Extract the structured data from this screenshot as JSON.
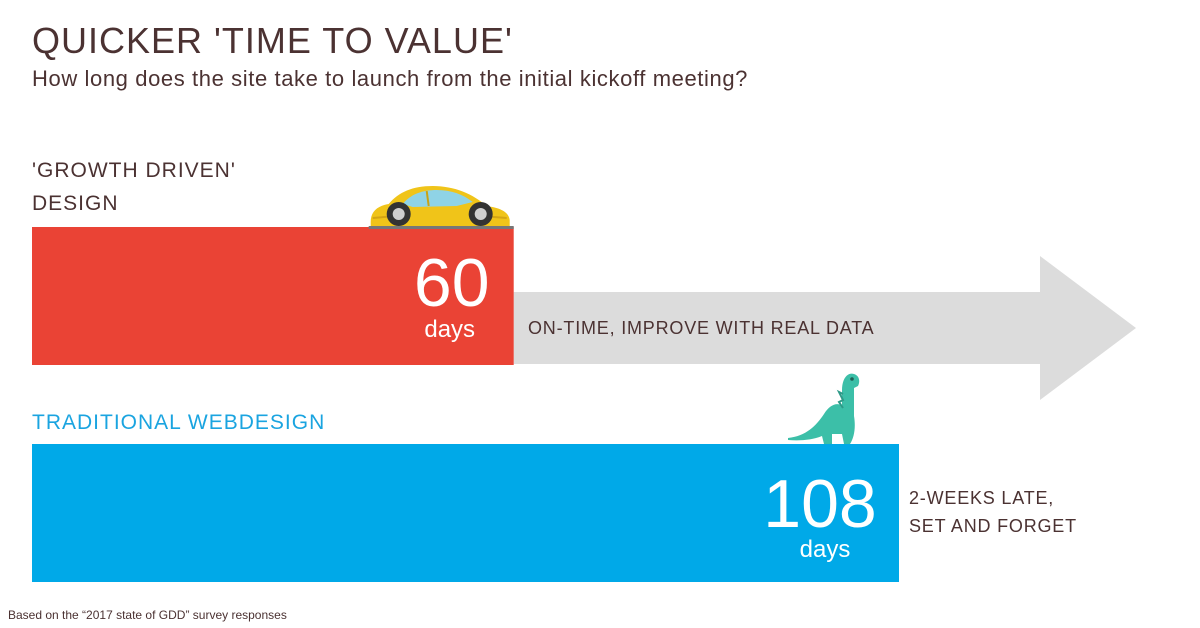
{
  "header": {
    "title": "QUICKER 'TIME TO VALUE'",
    "subtitle": "How long does the site take to launch from the initial kickoff meeting?"
  },
  "chart_data": {
    "type": "bar",
    "orientation": "horizontal",
    "categories": [
      "'GROWTH DRIVEN' DESIGN",
      "TRADITIONAL WEBDESIGN"
    ],
    "category_lines": [
      [
        "'GROWTH DRIVEN'",
        "DESIGN"
      ],
      [
        "TRADITIONAL WEBDESIGN"
      ]
    ],
    "values": [
      60,
      108
    ],
    "unit": "days",
    "value_labels": [
      "60",
      "108"
    ],
    "annotations": [
      "ON-TIME, IMPROVE WITH REAL DATA",
      "2-WEEKS LATE,\nSET AND FORGET"
    ],
    "annotation_lines": [
      [
        "ON-TIME, IMPROVE WITH REAL DATA"
      ],
      [
        "2-WEEKS LATE,",
        "SET AND FORGET"
      ]
    ],
    "icons": [
      "car-icon",
      "dinosaur-icon"
    ],
    "colors": {
      "gdd_bar": "#ea4335",
      "traditional_bar": "#00a9e8",
      "arrow": "#dcdcdc",
      "text": "#4b3232",
      "traditional_label": "#1aa4e0"
    },
    "grid": false,
    "legend": "none"
  },
  "footnote": "Based on the “2017 state of GDD” survey responses"
}
